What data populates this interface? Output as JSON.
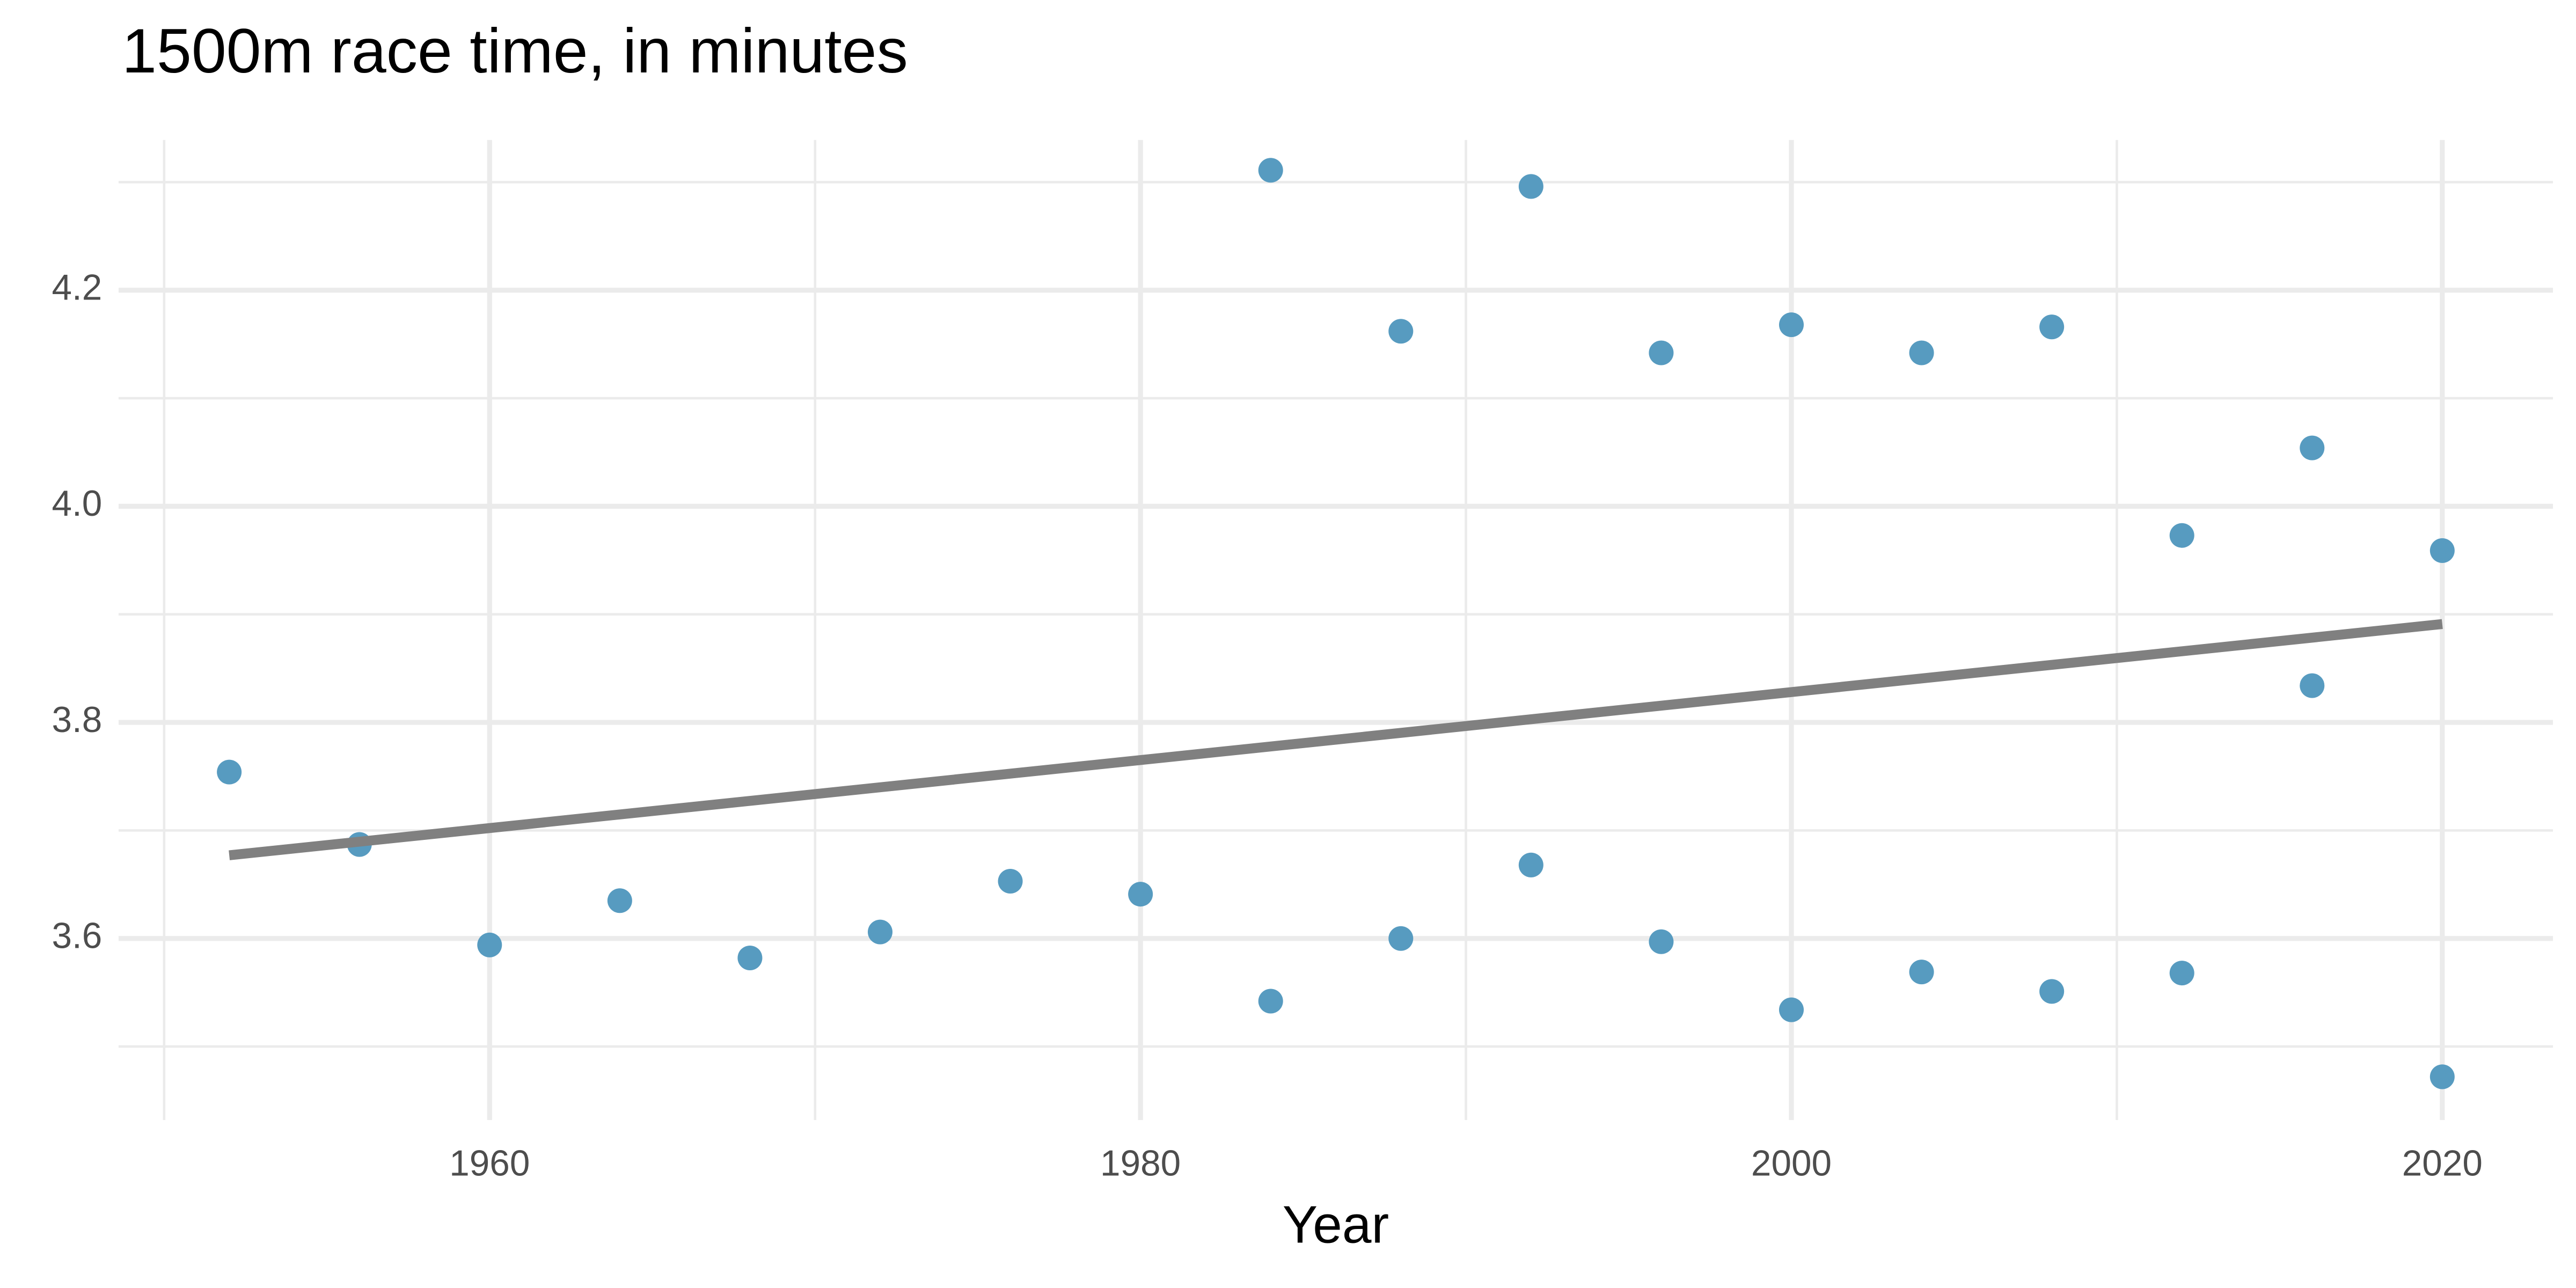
{
  "chart_data": {
    "type": "scatter",
    "title": "1500m race time, in minutes",
    "x_label": "Year",
    "xlim": [
      1948.6,
      2023.4
    ],
    "ylim": [
      3.432,
      4.339
    ],
    "xticks": [
      1960,
      1980,
      2000,
      2020
    ],
    "xminorticks": [
      1950,
      1970,
      1990,
      2010
    ],
    "yticks": [
      3.6,
      3.8,
      {
        "value": 4,
        "label": "4.0"
      },
      4.2
    ],
    "yminorticks": [
      3.5,
      3.7,
      3.9,
      4.1,
      4.3
    ],
    "grid": true,
    "series": [
      {
        "type": "scatter",
        "color": "#579bc0",
        "x": [
          1952,
          1956,
          1960,
          1964,
          1968,
          1972,
          1976,
          1980,
          1984,
          1984,
          1988,
          1988,
          1992,
          1992,
          1996,
          1996,
          2000,
          2000,
          2004,
          2004,
          2008,
          2008,
          2012,
          2012,
          2016,
          2016,
          2020,
          2020
        ],
        "values": [
          3.754,
          3.687,
          3.594,
          3.635,
          3.582,
          3.606,
          3.653,
          3.641,
          4.311,
          3.542,
          4.162,
          3.6,
          4.296,
          3.668,
          4.142,
          3.597,
          4.168,
          3.534,
          4.142,
          3.569,
          4.166,
          3.551,
          3.973,
          3.568,
          4.054,
          3.834,
          3.959,
          3.472
        ]
      },
      {
        "type": "line",
        "color": "#808080",
        "x": [
          1952,
          2020
        ],
        "values": [
          3.677,
          3.891
        ]
      }
    ]
  }
}
